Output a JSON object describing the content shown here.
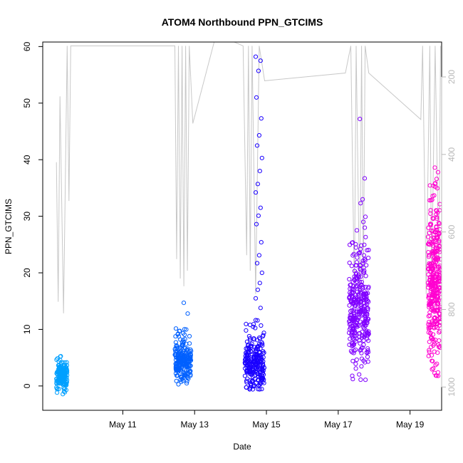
{
  "chart_data": {
    "type": "scatter",
    "title": "ATOM4 Northbound PPN_GTCIMS",
    "xlabel": "Date",
    "ylabel": "PPN_GTCIMS",
    "x_range_days": [
      8.77,
      19.88
    ],
    "xlim_dates": [
      "May 8",
      "May 19"
    ],
    "xticks": [
      {
        "label": "May 11",
        "day": 11
      },
      {
        "label": "May 13",
        "day": 13
      },
      {
        "label": "May 15",
        "day": 15
      },
      {
        "label": "May 17",
        "day": 17
      },
      {
        "label": "May 19",
        "day": 19
      }
    ],
    "ylim": [
      -4.3,
      60.8
    ],
    "yticks": [
      0,
      10,
      20,
      30,
      40,
      50,
      60
    ],
    "right_axis": {
      "ylim_reversed": [
        1060,
        110
      ],
      "ticks": [
        200,
        400,
        600,
        800,
        1000
      ],
      "color": "#b8b8b8"
    },
    "grid": false,
    "legend": "none",
    "series": [
      {
        "color": "#00a0ff",
        "clusters": [
          {
            "day_start": 9.15,
            "day_end": 9.45,
            "y_low": -1.8,
            "y_mid": 1.8,
            "y_high": 5.3,
            "n": 160,
            "spikes": []
          }
        ]
      },
      {
        "color": "#0060ff",
        "clusters": [
          {
            "day_start": 12.45,
            "day_end": 12.9,
            "y_low": 0.3,
            "y_mid": 4.5,
            "y_high": 10.3,
            "n": 220,
            "spikes": [
              14.7,
              12.8
            ]
          }
        ]
      },
      {
        "color": "#1a00ff",
        "clusters": [
          {
            "day_start": 14.4,
            "day_end": 14.95,
            "y_low": -0.6,
            "y_mid": 3.8,
            "y_high": 12,
            "n": 240,
            "spikes": [
              58.2,
              57.5,
              55.7,
              51,
              47.3,
              44.3,
              42.5,
              40.3,
              38,
              35.7,
              34.2,
              31.5,
              30.1,
              28.6,
              25.4,
              23.1,
              21.7,
              20,
              18.2,
              17,
              15.5,
              13.8
            ]
          }
        ]
      },
      {
        "color": "#8000ff",
        "clusters": [
          {
            "day_start": 17.3,
            "day_end": 17.85,
            "y_low": 1.0,
            "y_mid": 13,
            "y_high": 28,
            "n": 320,
            "spikes": [
              47.2,
              36.7,
              33,
              32.3,
              29.9,
              29
            ]
          }
        ]
      },
      {
        "color": "#ff00d0",
        "clusters": [
          {
            "day_start": 19.5,
            "day_end": 19.85,
            "y_low": 1.5,
            "y_mid": 18,
            "y_high": 36,
            "n": 340,
            "spikes": [
              38.6,
              37.8,
              36.6,
              35.2
            ]
          }
        ]
      }
    ],
    "altitude_trace": {
      "color": "#c8c8c8",
      "points": [
        [
          9.15,
          420
        ],
        [
          9.2,
          780
        ],
        [
          9.25,
          250
        ],
        [
          9.35,
          810
        ],
        [
          9.45,
          120
        ],
        [
          9.5,
          520
        ],
        [
          9.55,
          120
        ],
        [
          12.45,
          120
        ],
        [
          12.5,
          670
        ],
        [
          12.55,
          120
        ],
        [
          12.6,
          720
        ],
        [
          12.65,
          120
        ],
        [
          12.7,
          740
        ],
        [
          12.75,
          120
        ],
        [
          12.8,
          700
        ],
        [
          12.85,
          120
        ],
        [
          12.95,
          320
        ],
        [
          13.6,
          90
        ],
        [
          14.35,
          120
        ],
        [
          14.45,
          660
        ],
        [
          14.5,
          120
        ],
        [
          14.55,
          700
        ],
        [
          14.6,
          120
        ],
        [
          14.7,
          760
        ],
        [
          14.8,
          120
        ],
        [
          14.95,
          210
        ],
        [
          17.2,
          190
        ],
        [
          17.35,
          120
        ],
        [
          17.45,
          760
        ],
        [
          17.5,
          120
        ],
        [
          17.6,
          800
        ],
        [
          17.65,
          120
        ],
        [
          17.7,
          740
        ],
        [
          17.75,
          120
        ],
        [
          17.85,
          190
        ],
        [
          19.3,
          310
        ],
        [
          19.35,
          120
        ],
        [
          19.45,
          760
        ],
        [
          19.55,
          120
        ],
        [
          19.6,
          740
        ],
        [
          19.7,
          120
        ],
        [
          19.8,
          700
        ],
        [
          19.85,
          120
        ]
      ]
    }
  }
}
